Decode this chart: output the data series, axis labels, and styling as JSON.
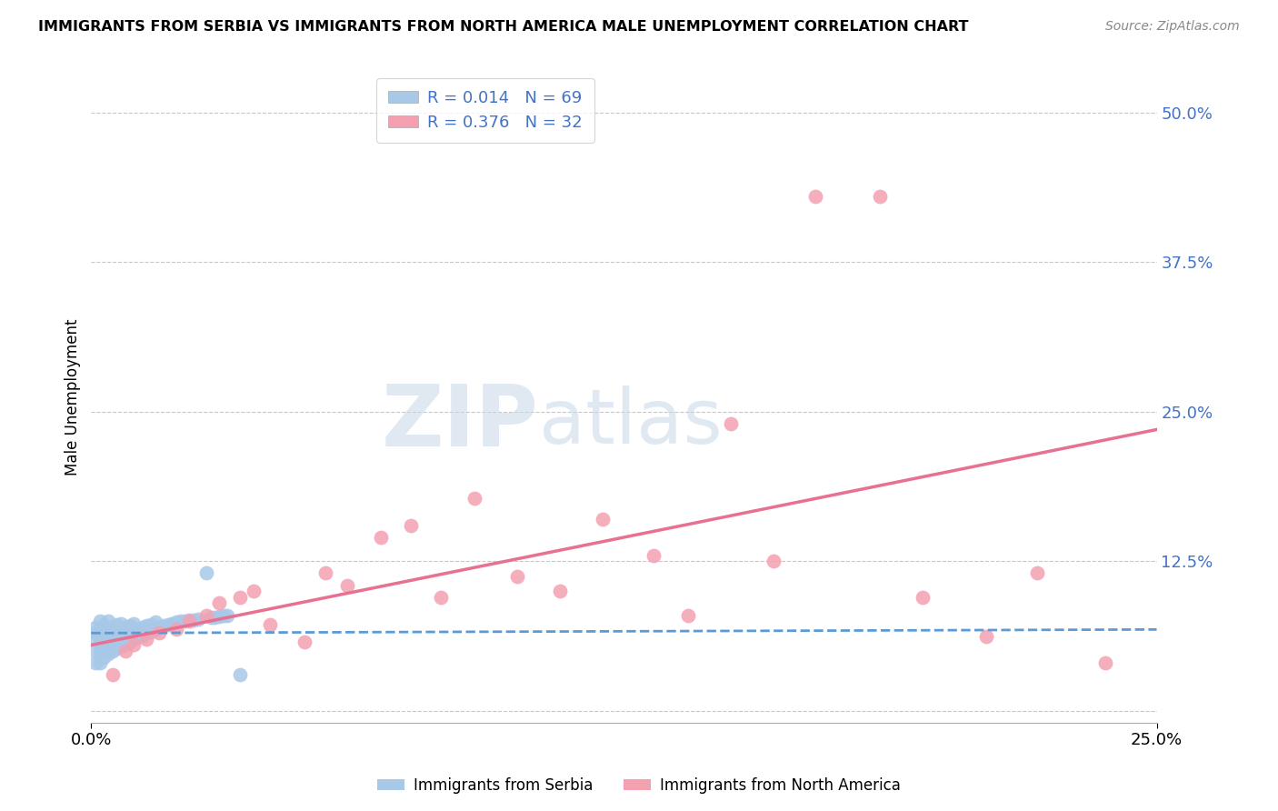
{
  "title": "IMMIGRANTS FROM SERBIA VS IMMIGRANTS FROM NORTH AMERICA MALE UNEMPLOYMENT CORRELATION CHART",
  "source": "Source: ZipAtlas.com",
  "ylabel": "Male Unemployment",
  "xlim": [
    0.0,
    0.25
  ],
  "ylim": [
    -0.01,
    0.535
  ],
  "yticks": [
    0.0,
    0.125,
    0.25,
    0.375,
    0.5
  ],
  "ytick_labels": [
    "",
    "12.5%",
    "25.0%",
    "37.5%",
    "50.0%"
  ],
  "xticks": [
    0.0,
    0.25
  ],
  "xtick_labels": [
    "0.0%",
    "25.0%"
  ],
  "serbia_color": "#a8c8e8",
  "serbia_line_color": "#5b9bd5",
  "north_america_color": "#f4a0b0",
  "north_america_line_color": "#e87090",
  "legend_label_1": "R = 0.014   N = 69",
  "legend_label_2": "R = 0.376   N = 32",
  "legend_bottom_1": "Immigrants from Serbia",
  "legend_bottom_2": "Immigrants from North America",
  "watermark_ZIP": "ZIP",
  "watermark_atlas": "atlas",
  "background_color": "#ffffff",
  "serbia_x": [
    0.001,
    0.001,
    0.001,
    0.001,
    0.001,
    0.002,
    0.002,
    0.002,
    0.002,
    0.002,
    0.002,
    0.003,
    0.003,
    0.003,
    0.003,
    0.003,
    0.004,
    0.004,
    0.004,
    0.004,
    0.004,
    0.005,
    0.005,
    0.005,
    0.005,
    0.006,
    0.006,
    0.006,
    0.006,
    0.007,
    0.007,
    0.007,
    0.007,
    0.008,
    0.008,
    0.008,
    0.009,
    0.009,
    0.009,
    0.01,
    0.01,
    0.01,
    0.011,
    0.011,
    0.012,
    0.012,
    0.013,
    0.013,
    0.014,
    0.014,
    0.015,
    0.015,
    0.016,
    0.017,
    0.018,
    0.019,
    0.02,
    0.021,
    0.022,
    0.023,
    0.024,
    0.025,
    0.027,
    0.028,
    0.029,
    0.03,
    0.031,
    0.032,
    0.035
  ],
  "serbia_y": [
    0.04,
    0.05,
    0.06,
    0.065,
    0.07,
    0.04,
    0.05,
    0.055,
    0.06,
    0.068,
    0.075,
    0.045,
    0.052,
    0.058,
    0.065,
    0.072,
    0.048,
    0.055,
    0.062,
    0.068,
    0.075,
    0.05,
    0.056,
    0.063,
    0.07,
    0.052,
    0.058,
    0.065,
    0.072,
    0.054,
    0.06,
    0.067,
    0.073,
    0.056,
    0.063,
    0.07,
    0.058,
    0.064,
    0.071,
    0.06,
    0.066,
    0.073,
    0.062,
    0.068,
    0.063,
    0.07,
    0.065,
    0.071,
    0.066,
    0.072,
    0.068,
    0.074,
    0.07,
    0.071,
    0.072,
    0.073,
    0.074,
    0.075,
    0.075,
    0.076,
    0.076,
    0.077,
    0.115,
    0.078,
    0.078,
    0.079,
    0.08,
    0.08,
    0.03
  ],
  "na_x": [
    0.005,
    0.008,
    0.01,
    0.013,
    0.016,
    0.02,
    0.023,
    0.027,
    0.03,
    0.035,
    0.038,
    0.042,
    0.05,
    0.055,
    0.06,
    0.068,
    0.075,
    0.082,
    0.09,
    0.1,
    0.11,
    0.12,
    0.132,
    0.14,
    0.15,
    0.16,
    0.17,
    0.185,
    0.195,
    0.21,
    0.222,
    0.238
  ],
  "na_y": [
    0.03,
    0.05,
    0.055,
    0.06,
    0.065,
    0.068,
    0.075,
    0.08,
    0.09,
    0.095,
    0.1,
    0.072,
    0.058,
    0.115,
    0.105,
    0.145,
    0.155,
    0.095,
    0.178,
    0.112,
    0.1,
    0.16,
    0.13,
    0.08,
    0.24,
    0.125,
    0.43,
    0.43,
    0.095,
    0.062,
    0.115,
    0.04
  ],
  "serbia_line_x": [
    0.0,
    0.25
  ],
  "serbia_line_y": [
    0.065,
    0.068
  ],
  "na_line_x": [
    0.0,
    0.25
  ],
  "na_line_y": [
    0.055,
    0.235
  ]
}
